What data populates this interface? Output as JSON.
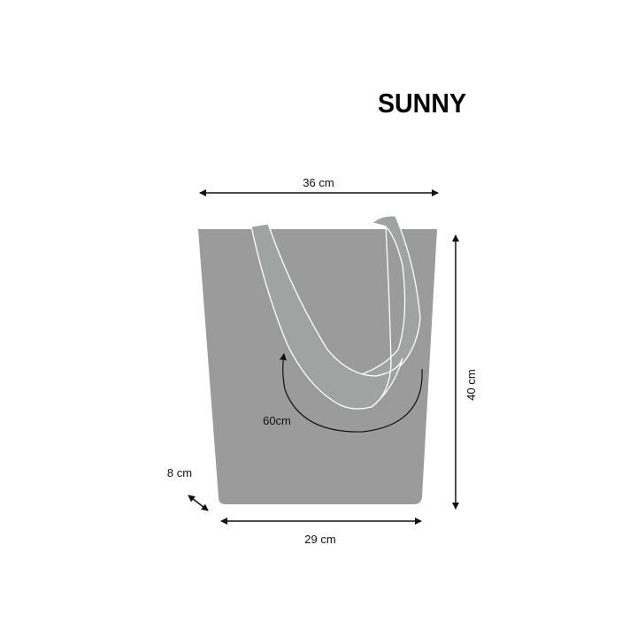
{
  "title": "SUNNY",
  "dimensions": {
    "top_width": "36 cm",
    "height": "40 cm",
    "bottom_width": "29 cm",
    "depth": "8 cm",
    "strap": "60cm"
  },
  "colors": {
    "bag": "#9b9b9b",
    "strap": "#a0a3a1",
    "outline": "#ffffff",
    "arrows": "#111111"
  }
}
